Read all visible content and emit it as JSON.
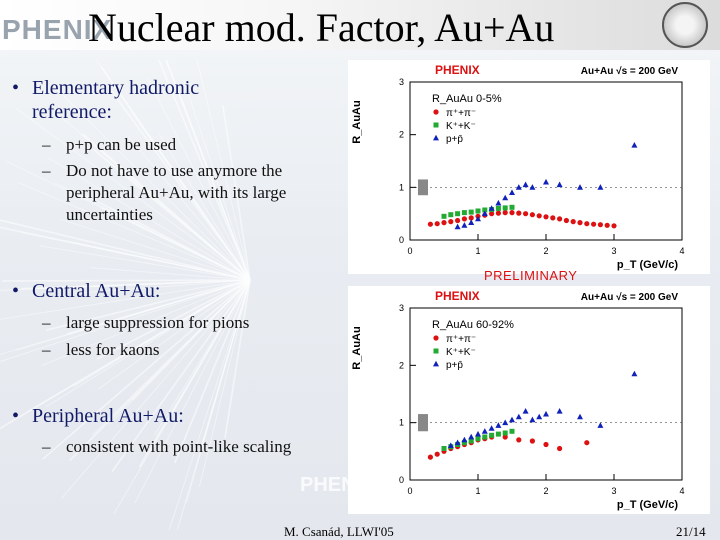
{
  "slide": {
    "title": "Nuclear mod. Factor, Au+Au",
    "logo_text": "PHENIX",
    "footer_author": "M. Csanád, LLWI'05",
    "footer_page": "21/14",
    "preliminary": "PRELIMINARY"
  },
  "bullets": [
    {
      "marker": "•",
      "text_lines": [
        "Elementary hadronic",
        "reference:"
      ],
      "subs": [
        {
          "marker": "–",
          "lines": [
            "p+p can be used"
          ]
        },
        {
          "marker": "–",
          "lines": [
            "Do not have to use anymore the",
            "peripheral Au+Au, with its large",
            "uncertainties"
          ]
        }
      ]
    },
    {
      "marker": "•",
      "text_lines": [
        "Central Au+Au:"
      ],
      "subs": [
        {
          "marker": "–",
          "lines": [
            "large suppression for pions"
          ]
        },
        {
          "marker": "–",
          "lines": [
            "less for kaons"
          ]
        }
      ]
    },
    {
      "marker": "•",
      "text_lines": [
        "Peripheral Au+Au:"
      ],
      "subs": [
        {
          "marker": "–",
          "lines": [
            "consistent with point-like scaling"
          ]
        }
      ]
    }
  ],
  "colors": {
    "pion": "#dd1111",
    "kaon": "#22aa33",
    "proton": "#1122bb",
    "brand_red": "#dd1111",
    "bullet_text": "#111a66"
  },
  "chart_data": [
    {
      "type": "scatter",
      "title": "PHENIX",
      "energy_label": "Au+Au √s = 200 GeV",
      "ylabel": "R_AuAu",
      "xlabel": "p_T (GeV/c)",
      "centrality": "0-5%",
      "xlim": [
        0,
        4
      ],
      "ylim": [
        0,
        3
      ],
      "xticks": [
        0,
        1,
        2,
        3,
        4
      ],
      "yticks": [
        0,
        1,
        2,
        3
      ],
      "series": [
        {
          "name": "π⁺+π⁻",
          "marker": "circle",
          "color": "#dd1111",
          "x": [
            0.3,
            0.4,
            0.5,
            0.6,
            0.7,
            0.8,
            0.9,
            1.0,
            1.1,
            1.2,
            1.3,
            1.4,
            1.5,
            1.6,
            1.7,
            1.8,
            1.9,
            2.0,
            2.1,
            2.2,
            2.3,
            2.4,
            2.5,
            2.6,
            2.7,
            2.8,
            2.9,
            3.0
          ],
          "y": [
            0.3,
            0.31,
            0.33,
            0.35,
            0.37,
            0.4,
            0.42,
            0.45,
            0.47,
            0.5,
            0.51,
            0.52,
            0.52,
            0.51,
            0.5,
            0.48,
            0.46,
            0.44,
            0.42,
            0.4,
            0.37,
            0.35,
            0.33,
            0.31,
            0.3,
            0.29,
            0.28,
            0.27
          ]
        },
        {
          "name": "K⁺+K⁻",
          "marker": "square",
          "color": "#22aa33",
          "x": [
            0.5,
            0.6,
            0.7,
            0.8,
            0.9,
            1.0,
            1.1,
            1.2,
            1.3,
            1.4,
            1.5
          ],
          "y": [
            0.45,
            0.48,
            0.5,
            0.52,
            0.53,
            0.55,
            0.57,
            0.58,
            0.6,
            0.61,
            0.62
          ]
        },
        {
          "name": "p+p̄",
          "marker": "triangle",
          "color": "#1122bb",
          "x": [
            0.7,
            0.8,
            0.9,
            1.0,
            1.1,
            1.2,
            1.3,
            1.4,
            1.5,
            1.6,
            1.7,
            1.8,
            2.0,
            2.2,
            2.5,
            2.8,
            3.3
          ],
          "y": [
            0.25,
            0.28,
            0.33,
            0.4,
            0.5,
            0.6,
            0.7,
            0.8,
            0.9,
            1.0,
            1.05,
            1.0,
            1.1,
            1.05,
            1.0,
            1.0,
            1.8
          ]
        }
      ]
    },
    {
      "type": "scatter",
      "title": "PHENIX",
      "energy_label": "Au+Au √s = 200 GeV",
      "ylabel": "R_AuAu",
      "xlabel": "p_T (GeV/c)",
      "centrality": "60-92%",
      "xlim": [
        0,
        4
      ],
      "ylim": [
        0,
        3
      ],
      "xticks": [
        0,
        1,
        2,
        3,
        4
      ],
      "yticks": [
        0,
        1,
        2,
        3
      ],
      "series": [
        {
          "name": "π⁺+π⁻",
          "marker": "circle",
          "color": "#dd1111",
          "x": [
            0.3,
            0.4,
            0.5,
            0.6,
            0.7,
            0.8,
            0.9,
            1.0,
            1.1,
            1.2,
            1.4,
            1.6,
            1.8,
            2.0,
            2.2,
            2.6
          ],
          "y": [
            0.4,
            0.45,
            0.5,
            0.55,
            0.58,
            0.62,
            0.65,
            0.7,
            0.72,
            0.75,
            0.75,
            0.7,
            0.68,
            0.62,
            0.55,
            0.65
          ]
        },
        {
          "name": "K⁺+K⁻",
          "marker": "square",
          "color": "#22aa33",
          "x": [
            0.5,
            0.6,
            0.7,
            0.8,
            0.9,
            1.0,
            1.1,
            1.2,
            1.3,
            1.4,
            1.5
          ],
          "y": [
            0.55,
            0.58,
            0.62,
            0.65,
            0.68,
            0.72,
            0.75,
            0.78,
            0.8,
            0.82,
            0.85
          ]
        },
        {
          "name": "p+p̄",
          "marker": "triangle",
          "color": "#1122bb",
          "x": [
            0.6,
            0.7,
            0.8,
            0.9,
            1.0,
            1.1,
            1.2,
            1.3,
            1.4,
            1.5,
            1.6,
            1.7,
            1.8,
            1.9,
            2.0,
            2.2,
            2.5,
            2.8,
            3.3
          ],
          "y": [
            0.6,
            0.65,
            0.7,
            0.75,
            0.8,
            0.85,
            0.9,
            0.95,
            1.0,
            1.05,
            1.1,
            1.2,
            1.05,
            1.1,
            1.15,
            1.2,
            1.1,
            0.95,
            1.85
          ]
        }
      ]
    }
  ]
}
